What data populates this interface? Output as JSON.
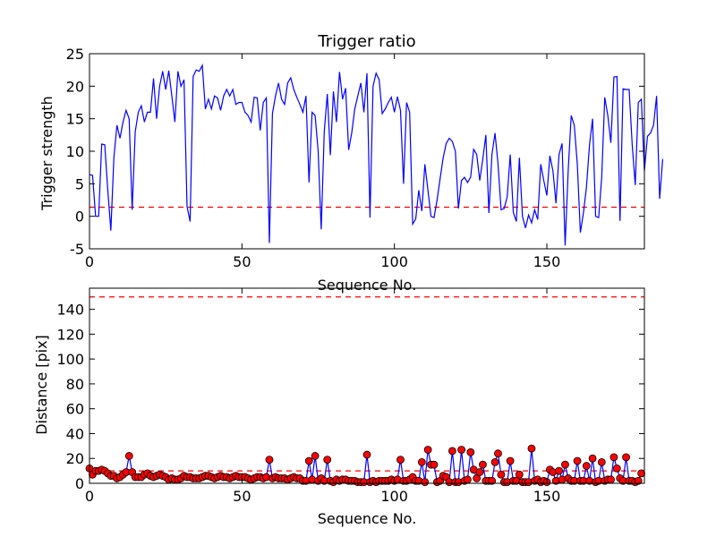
{
  "chart_data": [
    {
      "type": "line",
      "title": "Trigger ratio",
      "xlabel": "Sequence No.",
      "ylabel": "Trigger strength",
      "xlim": [
        0,
        182
      ],
      "ylim": [
        -5,
        25
      ],
      "xticks": [
        0,
        50,
        100,
        150
      ],
      "yticks": [
        -5,
        0,
        5,
        10,
        15,
        20,
        25
      ],
      "grid": false,
      "series": [
        {
          "color": "#0000ff",
          "style": "line",
          "values": [
            6.4,
            6.3,
            0,
            0,
            11.1,
            11,
            4,
            -2.2,
            9,
            14,
            12,
            14.5,
            16.3,
            15,
            1,
            13,
            16,
            17,
            14.5,
            16,
            16,
            21.2,
            15,
            20,
            22.3,
            19.5,
            22.4,
            18.5,
            14.5,
            22.3,
            20,
            21,
            1.5,
            -0.8,
            21.5,
            22.5,
            22.3,
            23.2,
            16.5,
            18,
            16.5,
            18.5,
            18.2,
            16.3,
            18.5,
            19.5,
            18.5,
            19.5,
            17.2,
            17.5,
            17.5,
            16,
            15.5,
            14.5,
            18.3,
            18.2,
            13.2,
            17.5,
            18.2,
            -4.1,
            15.8,
            18.5,
            20.5,
            18,
            17.2,
            20.5,
            21.3,
            19.5,
            18.3,
            17.2,
            16,
            18.5,
            5.2,
            16,
            15.5,
            10,
            -2,
            13,
            18.8,
            9.4,
            19.2,
            14.5,
            22.2,
            18,
            19.7,
            10.2,
            12.8,
            16.5,
            18.5,
            20.5,
            16,
            22,
            -0.2,
            20,
            22,
            21,
            15.8,
            16.5,
            17.5,
            18.3,
            16,
            18.4,
            16.3,
            5,
            17.5,
            16,
            -1.2,
            -0.4,
            4,
            0.8,
            8,
            4,
            0,
            -0.2,
            2.5,
            5.8,
            9,
            11.2,
            12,
            11.5,
            10,
            1.2,
            5.5,
            6,
            5.2,
            6,
            10.3,
            9.5,
            5.5,
            8.8,
            12.5,
            0.5,
            9.5,
            12.8,
            8,
            1,
            1.2,
            3,
            9.5,
            0.6,
            -0.8,
            9,
            0,
            -1.8,
            0.2,
            -1,
            1,
            -0.5,
            8,
            5.5,
            3.2,
            9.3,
            7,
            2,
            9.5,
            11.2,
            -4.5,
            7,
            15.5,
            14,
            8,
            -2.5,
            0.5,
            4.5,
            11,
            15,
            0,
            -0.2,
            6,
            18.3,
            15.5,
            11.3,
            21.4,
            21.5,
            -0.7,
            19.6,
            19.5,
            19.5,
            11,
            4.8,
            17.5,
            18,
            7,
            12.3,
            12.8,
            14,
            18.5,
            2.7,
            8.8
          ]
        }
      ],
      "reference_lines": [
        {
          "y": 1.4,
          "color": "#ff0000",
          "style": "dashed"
        }
      ]
    },
    {
      "type": "line",
      "title": "",
      "xlabel": "Sequence No.",
      "ylabel": "Distance [pix]",
      "xlim": [
        0,
        182
      ],
      "ylim": [
        0,
        157
      ],
      "xticks": [
        0,
        50,
        100,
        150
      ],
      "yticks": [
        0,
        20,
        40,
        60,
        80,
        100,
        120,
        140
      ],
      "grid": false,
      "series": [
        {
          "color": "#0000ff",
          "style": "line",
          "marker_color": "#ff0000",
          "values": [
            12,
            7,
            10,
            10,
            11,
            10,
            8,
            6,
            6,
            4,
            5,
            7,
            9,
            22,
            9,
            5,
            5,
            5,
            7,
            8,
            6,
            5,
            6,
            7,
            6,
            5,
            3,
            4,
            3,
            3,
            4,
            6,
            5,
            5,
            4,
            4,
            4,
            5,
            6,
            6,
            5,
            4,
            5,
            6,
            5,
            5,
            4,
            5,
            6,
            5,
            5,
            5,
            4,
            3,
            4,
            5,
            5,
            4,
            5,
            19,
            4,
            5,
            4,
            4,
            4,
            3,
            4,
            5,
            4,
            4,
            2,
            2,
            18,
            3,
            22,
            2,
            4,
            2,
            19,
            2,
            1,
            3,
            2,
            3,
            3,
            2,
            2,
            2,
            1,
            1,
            1,
            23,
            1,
            2,
            1,
            2,
            2,
            2,
            2,
            3,
            2,
            3,
            19,
            2,
            2,
            3,
            5,
            2,
            2,
            17,
            1,
            27,
            15,
            15,
            1,
            2,
            6,
            5,
            1,
            26,
            1,
            1,
            27,
            2,
            3,
            25,
            11,
            4,
            9,
            15,
            2,
            2,
            2,
            17,
            24,
            7,
            1,
            1,
            18,
            2,
            2,
            7,
            1,
            1,
            1,
            28,
            2,
            3,
            1,
            2,
            1,
            11,
            9,
            2,
            10,
            3,
            15,
            4,
            2,
            2,
            18,
            2,
            2,
            14,
            2,
            20,
            1,
            2,
            17,
            2,
            3,
            3,
            21,
            12,
            4,
            2,
            21,
            2,
            2,
            1,
            2,
            8
          ]
        }
      ],
      "reference_lines": [
        {
          "y": 150,
          "color": "#ff0000",
          "style": "dashed"
        },
        {
          "y": 10,
          "color": "#ff0000",
          "style": "dashed"
        }
      ]
    }
  ]
}
